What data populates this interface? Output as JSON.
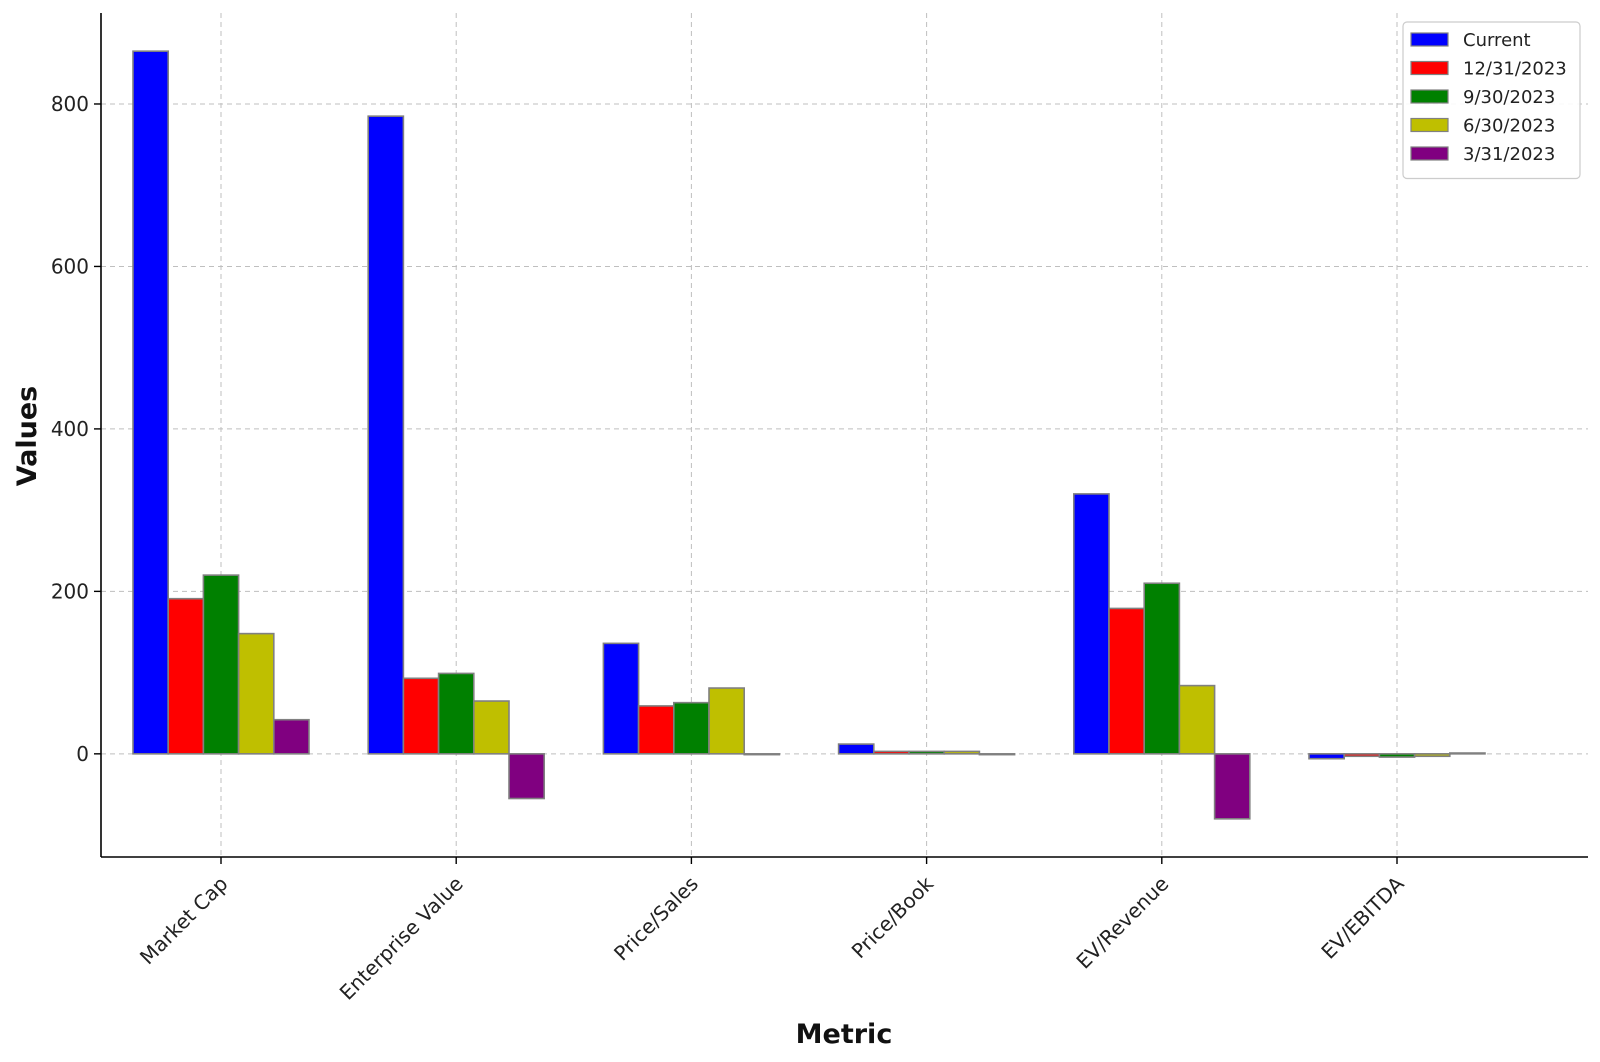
{
  "chart_data": {
    "type": "bar",
    "title": "",
    "xlabel": "Metric",
    "ylabel": "Values",
    "categories": [
      "Market Cap",
      "Enterprise Value",
      "Price/Sales",
      "Price/Book",
      "EV/Revenue",
      "EV/EBITDA"
    ],
    "series": [
      {
        "name": "Current",
        "color": "#0000ff",
        "values": [
          865,
          785,
          136,
          12,
          320,
          -6
        ]
      },
      {
        "name": "12/31/2023",
        "color": "#ff0000",
        "values": [
          191,
          93,
          59,
          3,
          179,
          -3
        ]
      },
      {
        "name": "9/30/2023",
        "color": "#008000",
        "values": [
          220,
          99,
          63,
          3,
          210,
          -4
        ]
      },
      {
        "name": "6/30/2023",
        "color": "#bfbf00",
        "values": [
          148,
          65,
          81,
          3,
          84,
          -3
        ]
      },
      {
        "name": "3/31/2023",
        "color": "#800080",
        "values": [
          42,
          -55,
          -1,
          -1,
          -80,
          1
        ]
      }
    ],
    "yticks": [
      0,
      200,
      400,
      600,
      800
    ],
    "ylim": [
      -127,
      912
    ],
    "grid": true,
    "legend_position": "top-right",
    "bar_edge_color": "#808080"
  }
}
